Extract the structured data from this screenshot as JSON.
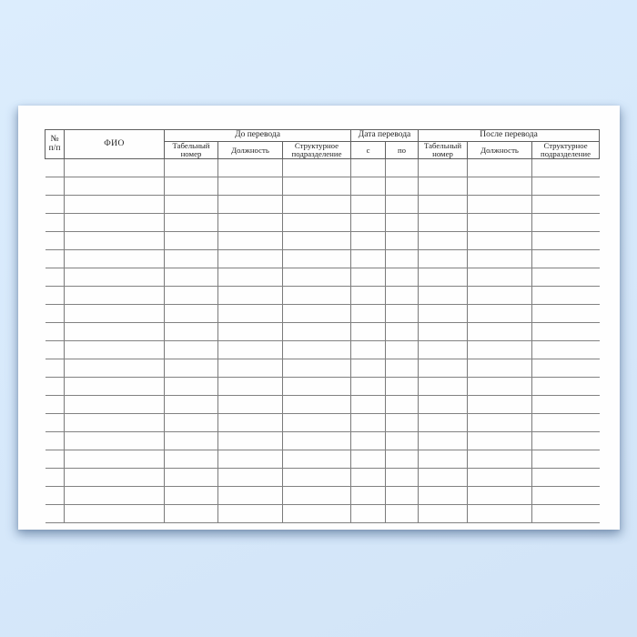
{
  "page": {
    "background_color": "#d6e8fa",
    "paper_color": "#fefefe",
    "line_color": "#7a7a7a"
  },
  "table": {
    "row_count": 20,
    "header": {
      "num": "№\nп/п",
      "fio": "ФИО",
      "groups": [
        {
          "label": "До перевода",
          "colspan": 3
        },
        {
          "label": "Дата перевода",
          "colspan": 2
        },
        {
          "label": "После перевода",
          "colspan": 3
        }
      ],
      "sub": [
        "Табельный\nномер",
        "Должность",
        "Структурное\nподразделение",
        "с",
        "по",
        "Табельный\nномер",
        "Должность",
        "Структурное\nподразделение"
      ]
    }
  }
}
